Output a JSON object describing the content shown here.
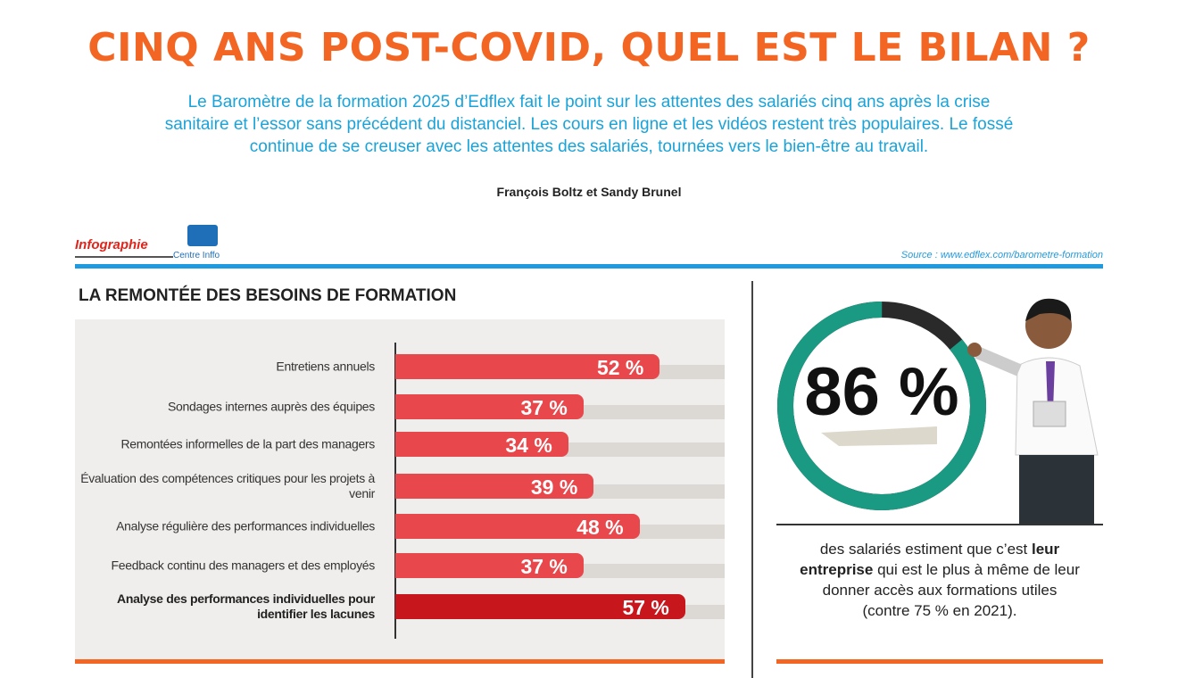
{
  "header": {
    "title": "CINQ ANS POST-COVID, QUEL EST LE BILAN ?",
    "subtitle": "Le Baromètre de la formation 2025 d’Edflex fait le point sur les attentes des salariés cinq ans après la crise sanitaire et l’essor sans précédent du distanciel. Les cours en ligne et les vidéos restent très populaires. Le fossé continue de se creuser avec les attentes des salariés, tournées vers le bien-être au travail.",
    "authors": "François Boltz et Sandy Brunel"
  },
  "banner": {
    "label": "Infographie",
    "brand": "Centre Inffo",
    "source": "Source : www.edflex.com/barometre-formation"
  },
  "chart_data": {
    "type": "bar",
    "orientation": "horizontal",
    "title": "LA REMONTÉE DES BESOINS DE FORMATION",
    "categories": [
      "Entretiens annuels",
      "Sondages internes auprès des équipes",
      "Remontées informelles de la part des managers",
      "Évaluation des compétences critiques pour les projets à venir",
      "Analyse régulière des performances individuelles",
      "Feedback continu des managers et des employés",
      "Analyse des performances individuelles pour identifier les lacunes"
    ],
    "values": [
      52,
      37,
      34,
      39,
      48,
      37,
      57
    ],
    "value_labels": [
      "52 %",
      "37 %",
      "34 %",
      "39 %",
      "48 %",
      "37 %",
      "57 %"
    ],
    "colors": [
      "#e8474c",
      "#e8474c",
      "#e8474c",
      "#e8474c",
      "#e8474c",
      "#e8474c",
      "#c8161d"
    ]
  },
  "stat": {
    "value": 86,
    "label": "86 %",
    "color": "#1a9a82",
    "text_before": "des salariés estiment que c’est ",
    "text_bold": "leur entreprise",
    "text_after": " qui est le plus à même de leur donner accès aux formations utiles (contre 75 % en 2021)."
  }
}
